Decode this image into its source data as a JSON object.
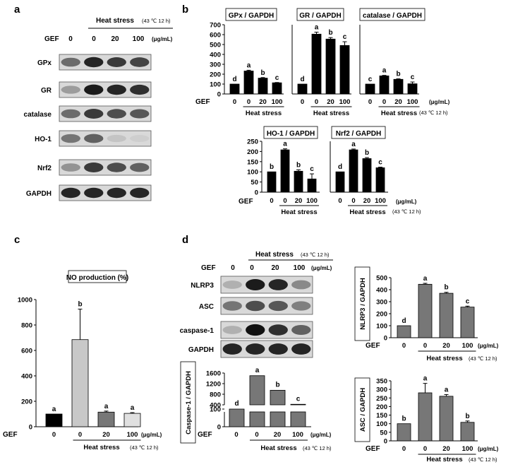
{
  "colors": {
    "black": "#000000",
    "gray_mid": "#777777",
    "gray_light": "#c8c8c8",
    "gray_lighter": "#e0e0e0",
    "blot_bg": "#d9d9d9",
    "band": "#1a1a1a"
  },
  "common": {
    "gef": "GEF",
    "heat_stress": "Heat stress",
    "condition": "(43 ℃ 12 h)",
    "unit": "(μg/mL)",
    "doses": [
      "0",
      "0",
      "20",
      "100"
    ]
  },
  "panel_a": {
    "label": "a",
    "rows": [
      "GPx",
      "GR",
      "catalase",
      "HO-1",
      "Nrf2",
      "GAPDH"
    ]
  },
  "panel_b": {
    "label": "b",
    "charts": [
      {
        "title": "GPx / GAPDH",
        "values": [
          100,
          232,
          160,
          113
        ],
        "errors": [
          0,
          8,
          6,
          3
        ],
        "letters": [
          "d",
          "a",
          "b",
          "c"
        ],
        "yticks": [
          "0",
          "100",
          "200",
          "300",
          "400",
          "500",
          "600",
          "700"
        ],
        "ylim": [
          0,
          700
        ]
      },
      {
        "title": "GR / GAPDH",
        "values": [
          100,
          605,
          555,
          490
        ],
        "errors": [
          0,
          20,
          15,
          38
        ],
        "letters": [
          "d",
          "a",
          "b",
          "c"
        ],
        "ylim": [
          0,
          700
        ]
      },
      {
        "title": "catalase / GAPDH",
        "values": [
          100,
          183,
          148,
          103
        ],
        "errors": [
          0,
          5,
          5,
          18
        ],
        "letters": [
          "c",
          "a",
          "b",
          "c"
        ],
        "ylim": [
          0,
          700
        ]
      },
      {
        "title": "HO-1 / GAPDH",
        "values": [
          100,
          208,
          103,
          65
        ],
        "errors": [
          0,
          5,
          7,
          25
        ],
        "letters": [
          "b",
          "a",
          "b",
          "c"
        ],
        "yticks": [
          "0",
          "50",
          "100",
          "150",
          "200",
          "250"
        ],
        "ylim": [
          0,
          250
        ]
      },
      {
        "title": "Nrf2 / GAPDH",
        "values": [
          100,
          208,
          165,
          120
        ],
        "errors": [
          0,
          4,
          5,
          3
        ],
        "letters": [
          "d",
          "a",
          "b",
          "c"
        ],
        "ylim": [
          0,
          250
        ]
      }
    ]
  },
  "panel_c": {
    "label": "c",
    "title": "NO production (%)",
    "values": [
      100,
      685,
      115,
      105
    ],
    "errors": [
      0,
      240,
      8,
      6
    ],
    "letters": [
      "a",
      "b",
      "a",
      "a"
    ],
    "yticks": [
      "0",
      "200",
      "400",
      "600",
      "800",
      "1000"
    ],
    "ylim": [
      0,
      1000
    ]
  },
  "panel_d": {
    "label": "d",
    "rows": [
      "NLRP3",
      "ASC",
      "caspase-1",
      "GAPDH"
    ],
    "caspase": {
      "ylabel": "Caspase-1 / GAPDH",
      "values": [
        100,
        1500,
        950,
        420
      ],
      "errors": [
        0,
        60,
        40,
        20
      ],
      "letters": [
        "d",
        "a",
        "b",
        "c"
      ],
      "yticks_low": [
        "0",
        "100"
      ],
      "yticks_high": [
        "400",
        "800",
        "1200",
        "1600"
      ]
    },
    "nlrp3": {
      "ylabel": "NLRP3 / GAPDH",
      "values": [
        100,
        445,
        370,
        255
      ],
      "errors": [
        0,
        8,
        8,
        8
      ],
      "letters": [
        "d",
        "a",
        "b",
        "c"
      ],
      "yticks": [
        "0",
        "100",
        "200",
        "300",
        "400",
        "500"
      ],
      "ylim": [
        0,
        500
      ]
    },
    "asc": {
      "ylabel": "ASC / GAPDH",
      "values": [
        100,
        280,
        260,
        108
      ],
      "errors": [
        0,
        55,
        10,
        8
      ],
      "letters": [
        "b",
        "a",
        "a",
        "b"
      ],
      "yticks": [
        "0",
        "50",
        "100",
        "150",
        "200",
        "250",
        "300",
        "350"
      ],
      "ylim": [
        0,
        350
      ]
    }
  }
}
